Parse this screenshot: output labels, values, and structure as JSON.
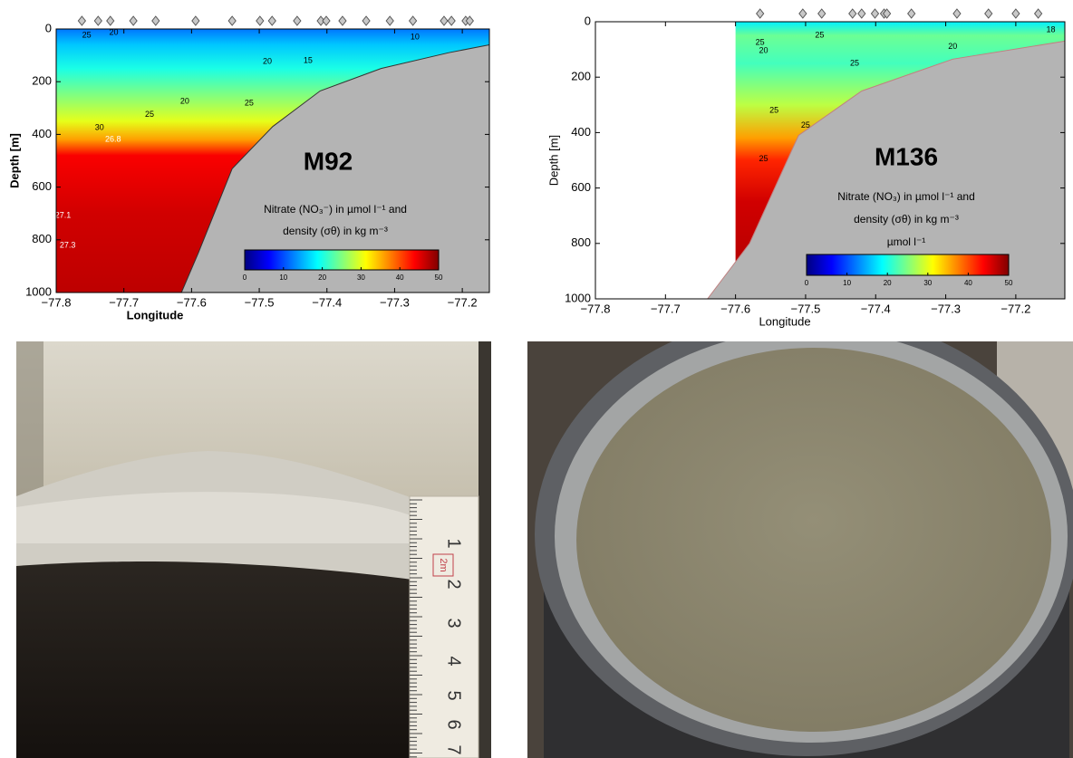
{
  "chart_data": [
    {
      "type": "section",
      "label": "M92",
      "legend_lines": [
        "Nitrate (NO₃⁻) in µmol l⁻¹ and",
        "density (σθ) in kg m⁻³"
      ],
      "xlabel": "Longitude",
      "ylabel": "Depth [m]",
      "xlim": [
        -77.8,
        -77.16
      ],
      "ylim": [
        1000,
        0
      ],
      "xticks": [
        {
          "value": -77.8,
          "label": "−77.8"
        },
        {
          "value": -77.7,
          "label": "−77.7"
        },
        {
          "value": -77.6,
          "label": "−77.6"
        },
        {
          "value": -77.5,
          "label": "−77.5"
        },
        {
          "value": -77.4,
          "label": "−77.4"
        },
        {
          "value": -77.3,
          "label": "−77.3"
        },
        {
          "value": -77.2,
          "label": "−77.2"
        }
      ],
      "yticks": [
        0,
        200,
        400,
        600,
        800,
        1000
      ],
      "section_start": -77.8,
      "nitrate_profile": {
        "depth": [
          0,
          60,
          150,
          250,
          350,
          420,
          480,
          700,
          1000
        ],
        "values": [
          12,
          16,
          20,
          25,
          30,
          36,
          44,
          46,
          47
        ]
      },
      "seafloor": {
        "x": [
          -77.615,
          -77.59,
          -77.54,
          -77.48,
          -77.41,
          -77.32,
          -77.22,
          -77.16
        ],
        "depth": [
          1000,
          850,
          530,
          370,
          235,
          150,
          90,
          60
        ]
      },
      "seafloor_color": "#b4b4b4",
      "stations": [
        -77.762,
        -77.738,
        -77.72,
        -77.686,
        -77.653,
        -77.594,
        -77.54,
        -77.499,
        -77.481,
        -77.444,
        -77.409,
        -77.401,
        -77.377,
        -77.342,
        -77.307,
        -77.273,
        -77.227,
        -77.216,
        -77.195,
        -77.189
      ],
      "contour_labels": [
        {
          "value": 25,
          "x": -77.755,
          "depth": 25,
          "color": "#000"
        },
        {
          "value": 20,
          "x": -77.715,
          "depth": 15,
          "color": "#000"
        },
        {
          "value": 20,
          "x": -77.61,
          "depth": 275,
          "color": "#000"
        },
        {
          "value": 20,
          "x": -77.488,
          "depth": 124,
          "color": "#000"
        },
        {
          "value": 15,
          "x": -77.428,
          "depth": 120,
          "color": "#000"
        },
        {
          "value": 25,
          "x": -77.515,
          "depth": 282,
          "color": "#000"
        },
        {
          "value": 25,
          "x": -77.662,
          "depth": 326,
          "color": "#000"
        },
        {
          "value": 30,
          "x": -77.736,
          "depth": 375,
          "color": "#000"
        },
        {
          "value": 10,
          "x": -77.27,
          "depth": 31,
          "color": "#000"
        },
        {
          "value": 26.8,
          "x": -77.716,
          "depth": 419,
          "color": "#fff"
        },
        {
          "value": 27.1,
          "x": -77.79,
          "depth": 708,
          "color": "#fff"
        },
        {
          "value": 27.3,
          "x": -77.783,
          "depth": 821,
          "color": "#fff"
        }
      ],
      "colorbar": {
        "lim": [
          0,
          50
        ],
        "ticks": [
          0,
          10,
          20,
          30,
          40,
          50
        ]
      },
      "colormap": [
        "#000080",
        "#0000ff",
        "#0080ff",
        "#00ffff",
        "#80ff80",
        "#ffff00",
        "#ff8000",
        "#ff0000",
        "#800000"
      ]
    },
    {
      "type": "section",
      "label": "M136",
      "legend_lines": [
        "Nitrate (NO₃) in µmol l⁻¹ and",
        "density (σθ) in kg m⁻³",
        "µmol l⁻¹"
      ],
      "xlabel": "Longitude",
      "ylabel": "Depth [m]",
      "xlim": [
        -77.8,
        -77.13
      ],
      "ylim": [
        1000,
        0
      ],
      "xticks": [
        {
          "value": -77.8,
          "label": "−77.8"
        },
        {
          "value": -77.7,
          "label": "−77.7"
        },
        {
          "value": -77.6,
          "label": "−77.6"
        },
        {
          "value": -77.5,
          "label": "−77.5"
        },
        {
          "value": -77.4,
          "label": "−77.4"
        },
        {
          "value": -77.3,
          "label": "−77.3"
        },
        {
          "value": -77.2,
          "label": "−77.2"
        }
      ],
      "yticks": [
        0,
        200,
        400,
        600,
        800,
        1000
      ],
      "section_start": -77.6,
      "nitrate_profile": {
        "depth": [
          0,
          50,
          150,
          300,
          420,
          500,
          650,
          1000
        ],
        "values": [
          18,
          24,
          22,
          28,
          36,
          42,
          46,
          48
        ]
      },
      "seafloor": {
        "x": [
          -77.8,
          -77.64,
          -77.58,
          -77.51,
          -77.42,
          -77.29,
          -77.13
        ],
        "depth": [
          1000,
          1000,
          800,
          410,
          250,
          135,
          70
        ]
      },
      "seafloor_color": "#b4b4b4",
      "stations": [
        -77.565,
        -77.504,
        -77.477,
        -77.433,
        -77.42,
        -77.401,
        -77.388,
        -77.384,
        -77.349,
        -77.284,
        -77.239,
        -77.2,
        -77.168
      ],
      "contour_labels": [
        {
          "value": 25,
          "x": -77.565,
          "depth": 75,
          "color": "#000"
        },
        {
          "value": 20,
          "x": -77.56,
          "depth": 105,
          "color": "#000"
        },
        {
          "value": 25,
          "x": -77.48,
          "depth": 50,
          "color": "#000"
        },
        {
          "value": 25,
          "x": -77.43,
          "depth": 150,
          "color": "#000"
        },
        {
          "value": 20,
          "x": -77.29,
          "depth": 90,
          "color": "#000"
        },
        {
          "value": 25,
          "x": -77.545,
          "depth": 320,
          "color": "#000"
        },
        {
          "value": 25,
          "x": -77.5,
          "depth": 375,
          "color": "#000"
        },
        {
          "value": 25,
          "x": -77.56,
          "depth": 495,
          "color": "#000"
        },
        {
          "value": 18,
          "x": -77.15,
          "depth": 30,
          "color": "#000"
        }
      ],
      "colorbar": {
        "lim": [
          0,
          50
        ],
        "ticks": [
          0,
          10,
          20,
          30,
          40,
          50
        ]
      },
      "colormap": [
        "#000080",
        "#0000ff",
        "#0080ff",
        "#00ffff",
        "#80ff80",
        "#ffff00",
        "#ff8000",
        "#ff0000",
        "#800000"
      ]
    }
  ],
  "photos": {
    "ruler_labels": [
      "1",
      "2",
      "3",
      "4",
      "5",
      "6",
      "7"
    ],
    "stamp": "2m"
  }
}
